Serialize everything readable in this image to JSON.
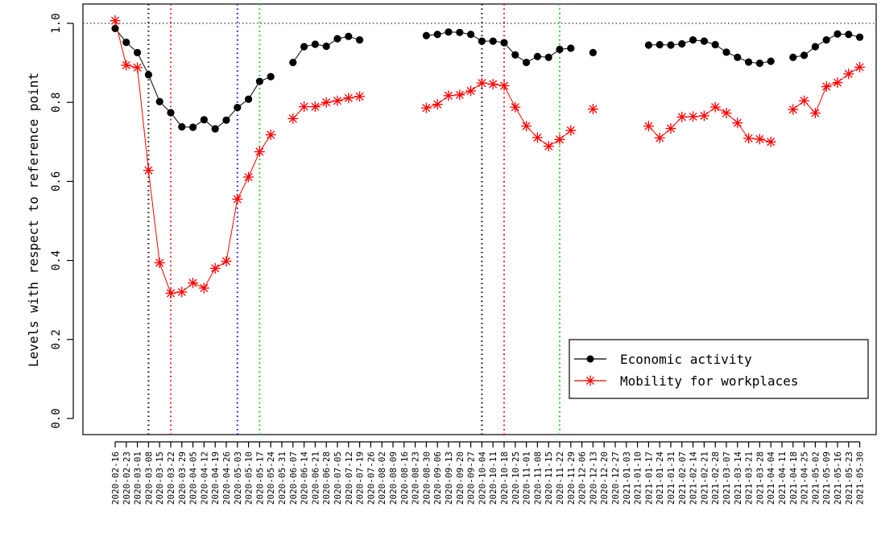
{
  "chart_data": {
    "type": "line",
    "title": "",
    "xlabel": "",
    "ylabel": "Levels with respect to reference point",
    "ylim": [
      0,
      1.0
    ],
    "yticks": [
      "0.0",
      "0.2",
      "0.4",
      "0.6",
      "0.8",
      "1.0"
    ],
    "reference_line": 1.0,
    "x": [
      "2020-02-16",
      "2020-02-23",
      "2020-03-01",
      "2020-03-08",
      "2020-03-15",
      "2020-03-22",
      "2020-03-29",
      "2020-04-05",
      "2020-04-12",
      "2020-04-19",
      "2020-04-26",
      "2020-05-03",
      "2020-05-10",
      "2020-05-17",
      "2020-05-24",
      "2020-05-31",
      "2020-06-07",
      "2020-06-14",
      "2020-06-21",
      "2020-06-28",
      "2020-07-05",
      "2020-07-12",
      "2020-07-19",
      "2020-07-26",
      "2020-08-02",
      "2020-08-09",
      "2020-08-16",
      "2020-08-23",
      "2020-08-30",
      "2020-09-06",
      "2020-09-13",
      "2020-09-20",
      "2020-09-27",
      "2020-10-04",
      "2020-10-11",
      "2020-10-18",
      "2020-10-25",
      "2020-11-01",
      "2020-11-08",
      "2020-11-15",
      "2020-11-22",
      "2020-11-29",
      "2020-12-06",
      "2020-12-13",
      "2020-12-20",
      "2020-12-27",
      "2021-01-03",
      "2021-01-10",
      "2021-01-17",
      "2021-01-24",
      "2021-01-31",
      "2021-02-07",
      "2021-02-14",
      "2021-02-21",
      "2021-02-28",
      "2021-03-07",
      "2021-03-14",
      "2021-03-21",
      "2021-03-28",
      "2021-04-04",
      "2021-04-11",
      "2021-04-18",
      "2021-04-25",
      "2021-05-02",
      "2021-05-09",
      "2021-05-16",
      "2021-05-23",
      "2021-05-30"
    ],
    "series": [
      {
        "name": "Economic activity",
        "color": "#000000",
        "marker": "filled-circle",
        "values": [
          0.987,
          0.952,
          0.926,
          0.87,
          0.802,
          0.774,
          0.738,
          0.737,
          0.756,
          0.733,
          0.755,
          0.787,
          0.808,
          0.853,
          0.865,
          null,
          0.901,
          0.941,
          0.947,
          0.942,
          0.961,
          0.967,
          0.958,
          null,
          null,
          null,
          null,
          null,
          0.969,
          0.972,
          0.978,
          0.977,
          0.972,
          0.955,
          0.955,
          0.951,
          0.92,
          0.901,
          0.916,
          0.914,
          0.934,
          0.937,
          null,
          0.926,
          null,
          null,
          null,
          null,
          0.945,
          0.946,
          0.945,
          0.948,
          0.958,
          0.955,
          0.946,
          0.927,
          0.914,
          0.902,
          0.899,
          0.904,
          null,
          0.914,
          0.919,
          0.941,
          0.958,
          0.973,
          0.972,
          0.965
        ]
      },
      {
        "name": "Mobility for workplaces",
        "color": "#ff0000",
        "marker": "asterisk",
        "values": [
          1.007,
          0.894,
          0.888,
          0.628,
          0.394,
          0.317,
          0.32,
          0.343,
          0.33,
          0.38,
          0.398,
          0.555,
          0.611,
          0.675,
          0.718,
          null,
          0.759,
          0.789,
          0.789,
          0.8,
          0.804,
          0.811,
          0.815,
          null,
          null,
          null,
          null,
          null,
          0.786,
          0.795,
          0.817,
          0.819,
          0.829,
          0.849,
          0.846,
          0.842,
          0.788,
          0.74,
          0.711,
          0.689,
          0.706,
          0.729,
          null,
          0.783,
          null,
          null,
          null,
          null,
          0.74,
          0.71,
          0.734,
          0.763,
          0.764,
          0.766,
          0.788,
          0.773,
          0.748,
          0.709,
          0.707,
          0.7,
          null,
          0.782,
          0.804,
          0.773,
          0.84,
          0.85,
          0.872,
          0.889
        ]
      }
    ],
    "vertical_lines": [
      {
        "x": "2020-03-08",
        "color": "#000000"
      },
      {
        "x": "2020-03-22",
        "color": "#ff0000"
      },
      {
        "x": "2020-05-03",
        "color": "#0000ff"
      },
      {
        "x": "2020-05-17",
        "color": "#00cc00"
      },
      {
        "x": "2020-10-04",
        "color": "#000000"
      },
      {
        "x": "2020-10-18",
        "color": "#ff0000"
      },
      {
        "x": "2020-11-22",
        "color": "#00cc00"
      }
    ],
    "legend": {
      "placement": "bottom-right",
      "entries": [
        "Economic activity",
        "Mobility for workplaces"
      ]
    },
    "grid": false
  }
}
